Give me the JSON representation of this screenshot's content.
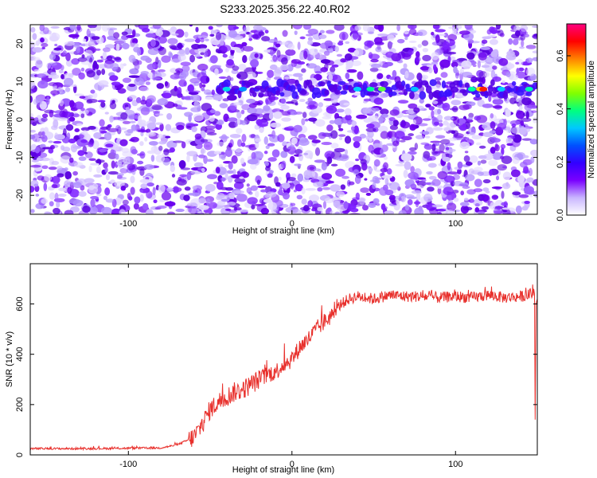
{
  "title": "S233.2025.356.22.40.R02",
  "spectrogram": {
    "type": "heatmap",
    "xlabel": "Height of straight line (km)",
    "ylabel": "Frequency (Hz)",
    "xlim": [
      -160,
      150
    ],
    "ylim": [
      -25,
      25
    ],
    "xticks": [
      -100,
      0,
      100
    ],
    "xtick_labels": [
      "-100",
      "0",
      "100"
    ],
    "yticks": [
      -20,
      -10,
      0,
      10,
      20
    ],
    "ytick_labels": [
      "-20",
      "-10",
      "0",
      "10",
      "20"
    ],
    "signal_band_hz": 8,
    "signal_start_km": -45,
    "colorbar": {
      "label": "Normalized spectral amplitude",
      "range": [
        0,
        0.72
      ],
      "ticks": [
        0.0,
        0.2,
        0.4,
        0.6
      ],
      "tick_labels": [
        "0.0",
        "0.2",
        "0.4",
        "0.6"
      ],
      "colors": [
        "#ffffff",
        "#c9b6ff",
        "#7a00ff",
        "#3300ff",
        "#0050ff",
        "#00c8ff",
        "#00ff80",
        "#80ff00",
        "#ffff00",
        "#ff8000",
        "#ff0000",
        "#ff0080"
      ]
    },
    "line_color": "#7a00ff"
  },
  "snr": {
    "type": "line",
    "xlabel": "Height of straight line (km)",
    "ylabel": "SNR (10 * v/v)",
    "xlim": [
      -160,
      150
    ],
    "ylim": [
      0,
      760
    ],
    "xticks": [
      -100,
      0,
      100
    ],
    "xtick_labels": [
      "-100",
      "0",
      "100"
    ],
    "yticks": [
      0,
      200,
      400,
      600
    ],
    "ytick_labels": [
      "0",
      "200",
      "400",
      "600"
    ],
    "color": "#e8302c",
    "x": [
      -160,
      -120,
      -80,
      -70,
      -60,
      -55,
      -50,
      -45,
      -40,
      -35,
      -30,
      -25,
      -20,
      -15,
      -10,
      -5,
      0,
      5,
      10,
      15,
      20,
      25,
      30,
      35,
      40,
      50,
      60,
      70,
      80,
      90,
      100,
      110,
      120,
      130,
      140,
      148,
      149,
      150
    ],
    "values": [
      25,
      25,
      28,
      40,
      70,
      120,
      180,
      210,
      230,
      250,
      260,
      280,
      300,
      320,
      330,
      360,
      380,
      430,
      460,
      500,
      530,
      560,
      600,
      620,
      630,
      620,
      635,
      630,
      630,
      625,
      630,
      625,
      635,
      625,
      630,
      640,
      140,
      620
    ]
  }
}
